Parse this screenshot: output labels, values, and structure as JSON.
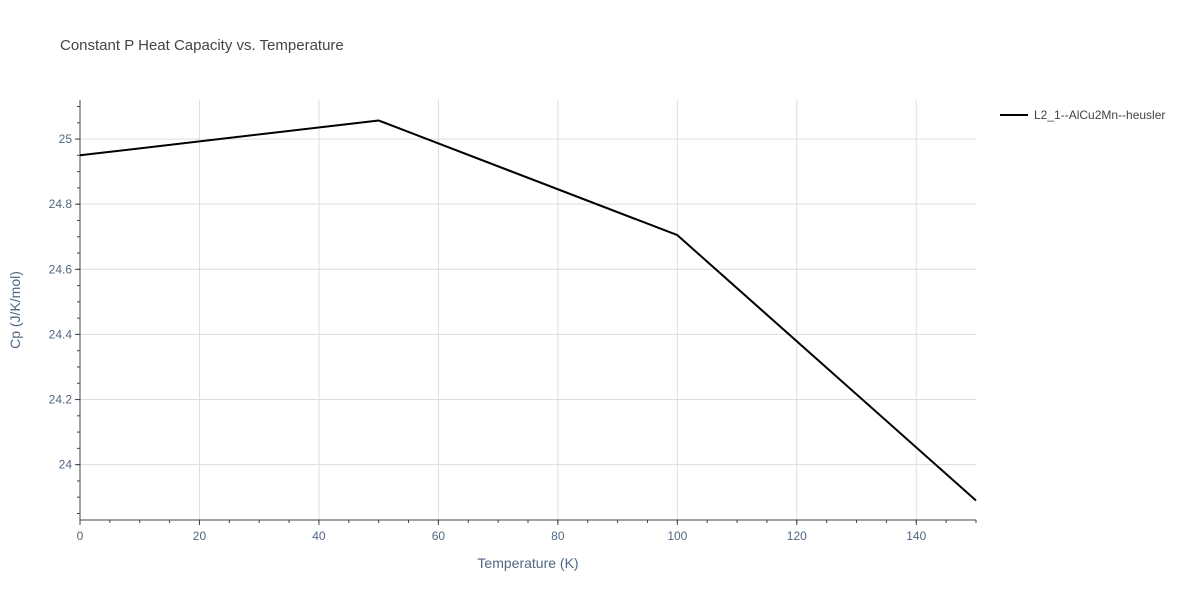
{
  "chart_data": {
    "type": "line",
    "title": "Constant P Heat Capacity vs. Temperature",
    "xlabel": "Temperature (K)",
    "ylabel": "Cp (J/K/mol)",
    "xlim": [
      0,
      150
    ],
    "ylim": [
      23.83,
      25.12
    ],
    "x_ticks": [
      0,
      20,
      40,
      60,
      80,
      100,
      120,
      140
    ],
    "y_ticks": [
      24,
      24.2,
      24.4,
      24.6,
      24.8,
      25
    ],
    "x_tick_labels": [
      "0",
      "20",
      "40",
      "60",
      "80",
      "100",
      "120",
      "140"
    ],
    "y_tick_labels": [
      "24",
      "24.2",
      "24.4",
      "24.6",
      "24.8",
      "25"
    ],
    "grid": true,
    "legend_position": "top-right",
    "series": [
      {
        "name": "L2_1--AlCu2Mn--heusler",
        "color": "#000000",
        "x": [
          0,
          50,
          100,
          150
        ],
        "y": [
          24.95,
          25.057,
          24.705,
          23.89
        ]
      }
    ]
  }
}
